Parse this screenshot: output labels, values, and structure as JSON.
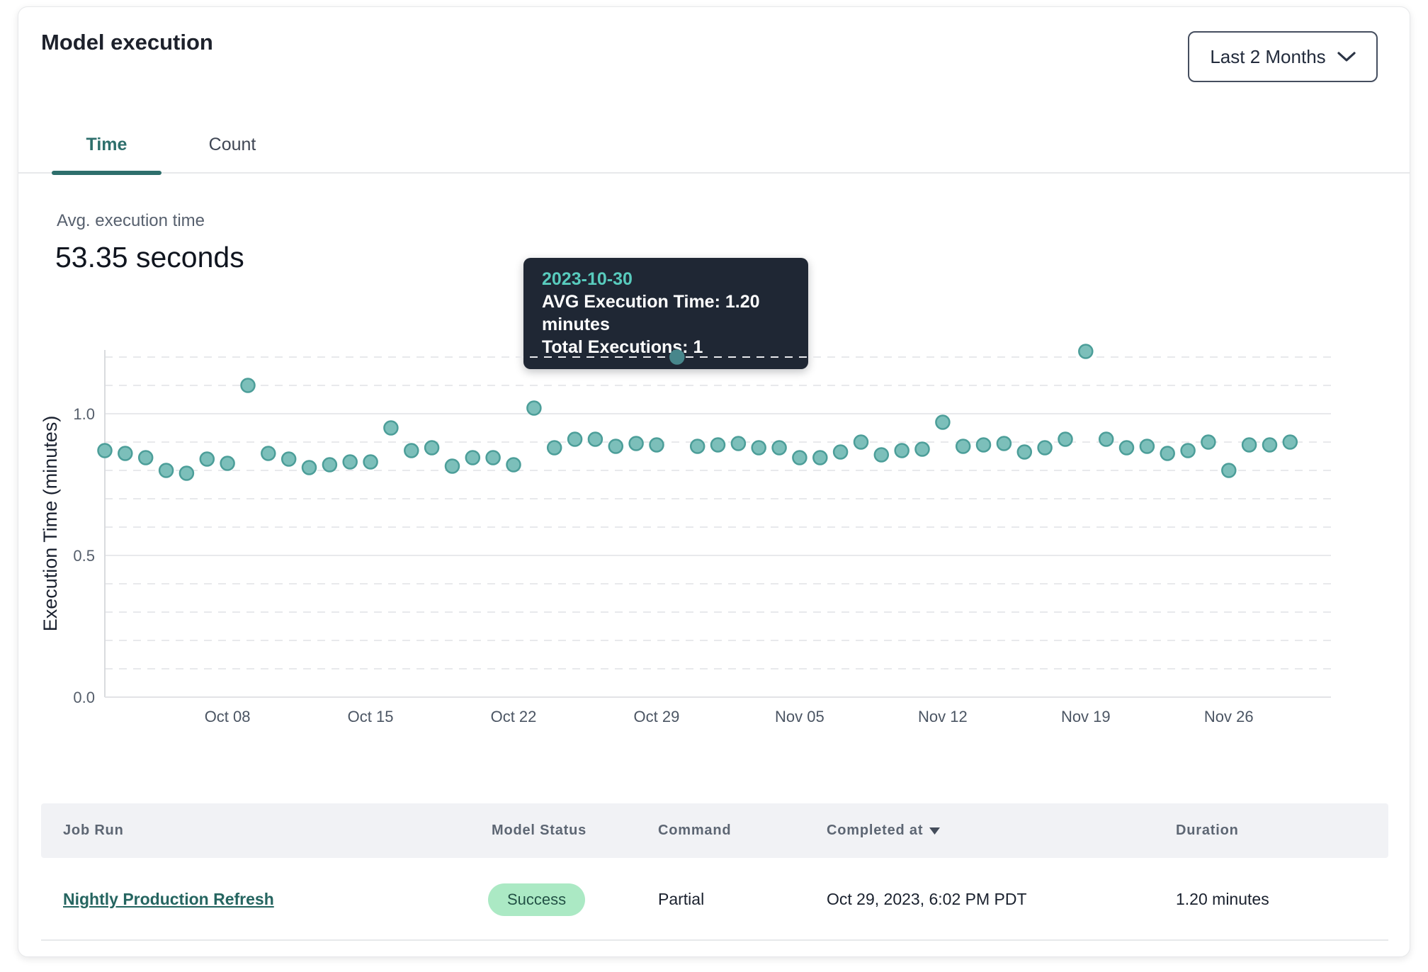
{
  "header": {
    "title": "Model execution",
    "range_selector": {
      "label": "Last 2 Months"
    }
  },
  "tabs": [
    {
      "label": "Time",
      "active": true
    },
    {
      "label": "Count",
      "active": false
    }
  ],
  "stat": {
    "label": "Avg. execution time",
    "value": "53.35 seconds"
  },
  "tooltip": {
    "date": "2023-10-30",
    "avg_line": "AVG Execution Time: 1.20 minutes",
    "total_line": "Total Executions: 1"
  },
  "chart_data": {
    "type": "scatter",
    "title": "",
    "xlabel": "",
    "ylabel": "Execution Time (minutes)",
    "ylim": [
      0,
      1.25
    ],
    "y_ticks": [
      0.0,
      0.5,
      1.0
    ],
    "grid_step": 0.1,
    "grid": "dashed-minor-solid-major",
    "legend": "none",
    "x": [
      "2023-10-02",
      "2023-10-03",
      "2023-10-04",
      "2023-10-05",
      "2023-10-06",
      "2023-10-07",
      "2023-10-08",
      "2023-10-09",
      "2023-10-10",
      "2023-10-11",
      "2023-10-12",
      "2023-10-13",
      "2023-10-14",
      "2023-10-15",
      "2023-10-16",
      "2023-10-17",
      "2023-10-18",
      "2023-10-19",
      "2023-10-20",
      "2023-10-21",
      "2023-10-22",
      "2023-10-23",
      "2023-10-24",
      "2023-10-25",
      "2023-10-26",
      "2023-10-27",
      "2023-10-28",
      "2023-10-29",
      "2023-10-30",
      "2023-10-31",
      "2023-11-01",
      "2023-11-02",
      "2023-11-03",
      "2023-11-04",
      "2023-11-05",
      "2023-11-06",
      "2023-11-07",
      "2023-11-08",
      "2023-11-09",
      "2023-11-10",
      "2023-11-11",
      "2023-11-12",
      "2023-11-13",
      "2023-11-14",
      "2023-11-15",
      "2023-11-16",
      "2023-11-17",
      "2023-11-18",
      "2023-11-19",
      "2023-11-20",
      "2023-11-21",
      "2023-11-22",
      "2023-11-23",
      "2023-11-24",
      "2023-11-25",
      "2023-11-26",
      "2023-11-27",
      "2023-11-28",
      "2023-11-29"
    ],
    "values": [
      0.87,
      0.86,
      0.845,
      0.8,
      0.79,
      0.84,
      0.825,
      1.1,
      0.86,
      0.84,
      0.81,
      0.82,
      0.83,
      0.83,
      0.95,
      0.87,
      0.88,
      0.815,
      0.845,
      0.845,
      0.82,
      1.02,
      0.88,
      0.91,
      0.91,
      0.885,
      0.895,
      0.89,
      1.2,
      0.885,
      0.89,
      0.895,
      0.88,
      0.88,
      0.845,
      0.845,
      0.865,
      0.9,
      0.855,
      0.87,
      0.875,
      0.97,
      0.885,
      0.89,
      0.895,
      0.865,
      0.88,
      0.91,
      1.22,
      0.91,
      0.88,
      0.885,
      0.86,
      0.87,
      0.9,
      0.8,
      0.89,
      0.89,
      0.9
    ],
    "highlight": {
      "index": 28,
      "date": "2023-10-30",
      "value": 1.2,
      "total_executions": 1
    },
    "x_tick_labels": [
      "Oct 08",
      "Oct 15",
      "Oct 22",
      "Oct 29",
      "Nov 05",
      "Nov 12",
      "Nov 19",
      "Nov 26"
    ],
    "x_tick_indices": [
      6,
      13,
      20,
      27,
      34,
      41,
      48,
      55
    ]
  },
  "table": {
    "columns": [
      {
        "label": "Job Run"
      },
      {
        "label": "Model Status"
      },
      {
        "label": "Command"
      },
      {
        "label": "Completed at",
        "sorted": "desc"
      },
      {
        "label": "Duration"
      }
    ],
    "rows": [
      {
        "job_run": "Nightly Production Refresh",
        "model_status": "Success",
        "command": "Partial",
        "completed_at": "Oct 29, 2023, 6:02 PM PDT",
        "duration": "1.20 minutes"
      }
    ]
  },
  "colors": {
    "accent": "#2e6f6c",
    "accent_light": "#58cbbd",
    "tooltip_bg": "#1f2734",
    "dot_fill": "#7cbfba",
    "dot_stroke": "#4c9e99",
    "dot_highlight": "#47868b",
    "badge_bg": "#abe9c4",
    "badge_text": "#235246",
    "link": "#256560",
    "header_bg": "#f1f2f5"
  }
}
